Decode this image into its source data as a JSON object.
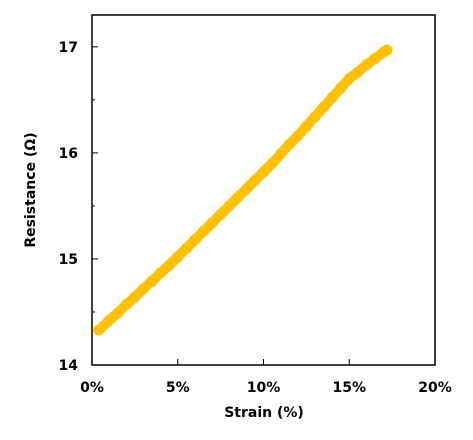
{
  "chart_data": {
    "type": "scatter",
    "title": "",
    "xlabel": "Strain (%)",
    "ylabel": "Resistance (Ω)",
    "xlim": [
      0,
      20
    ],
    "ylim": [
      14,
      17.3
    ],
    "x_ticks": [
      0,
      5,
      10,
      15,
      20
    ],
    "x_tick_labels": [
      "0%",
      "5%",
      "10%",
      "15%",
      "20%"
    ],
    "y_ticks": [
      14,
      15,
      16,
      17
    ],
    "y_tick_labels": [
      "14",
      "15",
      "16",
      "17"
    ],
    "grid": false,
    "legend": "none",
    "series": [
      {
        "color": "#FFC000",
        "marker": "circle",
        "x": [
          0.4,
          1.0,
          1.5,
          2.0,
          2.5,
          3.0,
          3.5,
          4.0,
          4.5,
          5.0,
          5.5,
          6.0,
          6.5,
          7.0,
          7.5,
          8.0,
          8.5,
          9.0,
          9.5,
          10.0,
          10.5,
          11.0,
          11.5,
          12.0,
          12.5,
          13.0,
          13.5,
          14.0,
          14.5,
          15.0,
          15.5,
          16.0,
          16.5,
          17.0,
          17.2
        ],
        "y": [
          14.33,
          14.42,
          14.49,
          14.57,
          14.64,
          14.72,
          14.79,
          14.87,
          14.94,
          15.02,
          15.1,
          15.18,
          15.26,
          15.34,
          15.42,
          15.5,
          15.58,
          15.66,
          15.74,
          15.82,
          15.9,
          15.99,
          16.08,
          16.16,
          16.25,
          16.34,
          16.43,
          16.52,
          16.61,
          16.7,
          16.76,
          16.83,
          16.89,
          16.95,
          16.97
        ]
      }
    ]
  }
}
